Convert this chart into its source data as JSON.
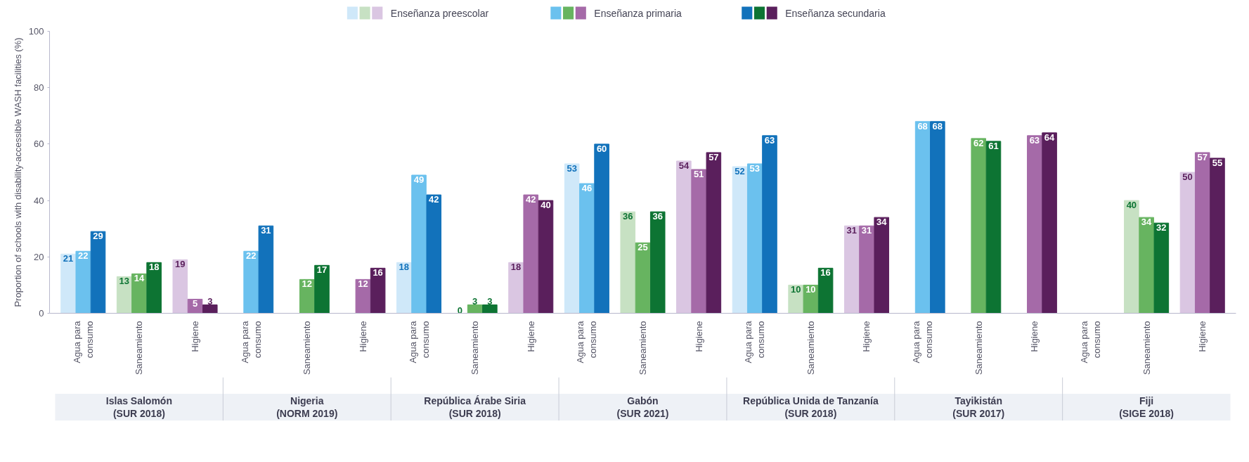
{
  "chart_data": {
    "type": "bar",
    "ylabel": "Proportion of schools with disability-accessible WASH facilities (%)",
    "categories": [
      "Agua para consumo",
      "Saneamiento",
      "Higiene",
      "Agua para consumo",
      "Saneamiento",
      "Higiene",
      "Agua para consumo",
      "Saneamiento",
      "Higiene",
      "Agua para consumo",
      "Saneamiento",
      "Higiene",
      "Agua para consumo",
      "Saneamiento",
      "Higiene",
      "Agua para consumo",
      "Saneamiento",
      "Higiene",
      "Agua para consumo",
      "Saneamiento",
      "Higiene"
    ],
    "annotations": [
      "Islas Salomón (SUR 2018)",
      "Nigeria (NORM 2019)",
      "República Árabe Siria (SUR 2018)",
      "Gabón (SUR 2021)",
      "República Unida de Tanzanía (SUR 2018)",
      "Tayikistán (SUR 2017)",
      "Fiji (SIGE 2018)"
    ],
    "series": [
      {
        "name": "Enseñanza preescolar",
        "colors": [
          "#cfe8f9",
          "#c7e1c3",
          "#dac6e2",
          "#cfe8f9",
          "#c7e1c3",
          "#dac6e2",
          "#cfe8f9",
          "#c7e1c3",
          "#dac6e2",
          "#cfe8f9",
          "#c7e1c3",
          "#dac6e2",
          "#cfe8f9",
          "#c7e1c3",
          "#dac6e2",
          "#cfe8f9",
          "#c7e1c3",
          "#dac6e2",
          "#cfe8f9",
          "#c7e1c3",
          "#dac6e2"
        ],
        "values": [
          21,
          13,
          19,
          null,
          null,
          null,
          18,
          0,
          18,
          53,
          36,
          54,
          52,
          10,
          31,
          null,
          null,
          null,
          null,
          40,
          50
        ]
      },
      {
        "name": "Enseñanza primaria",
        "colors": [
          "#6bc1ee",
          "#67b460",
          "#a56aa8",
          "#6bc1ee",
          "#67b460",
          "#a56aa8",
          "#6bc1ee",
          "#67b460",
          "#a56aa8",
          "#6bc1ee",
          "#67b460",
          "#a56aa8",
          "#6bc1ee",
          "#67b460",
          "#a56aa8",
          "#6bc1ee",
          "#67b460",
          "#a56aa8",
          "#6bc1ee",
          "#67b460",
          "#a56aa8"
        ],
        "values": [
          22,
          14,
          5,
          22,
          12,
          12,
          49,
          3,
          42,
          46,
          25,
          51,
          53,
          10,
          31,
          68,
          62,
          63,
          null,
          34,
          57
        ]
      },
      {
        "name": "Enseñanza secundaria",
        "colors": [
          "#1272bb",
          "#0d7433",
          "#5a1f5c",
          "#1272bb",
          "#0d7433",
          "#5a1f5c",
          "#1272bb",
          "#0d7433",
          "#5a1f5c",
          "#1272bb",
          "#0d7433",
          "#5a1f5c",
          "#1272bb",
          "#0d7433",
          "#5a1f5c",
          "#1272bb",
          "#0d7433",
          "#5a1f5c",
          "#1272bb",
          "#0d7433",
          "#5a1f5c"
        ],
        "values": [
          29,
          18,
          3,
          31,
          17,
          16,
          42,
          3,
          40,
          60,
          36,
          57,
          63,
          16,
          34,
          68,
          61,
          64,
          null,
          32,
          55
        ]
      }
    ],
    "ylim": [
      0,
      100
    ],
    "yticks": [
      0,
      20,
      40,
      60,
      80,
      100
    ],
    "data_labels": true,
    "grid": false,
    "legend": "top"
  }
}
